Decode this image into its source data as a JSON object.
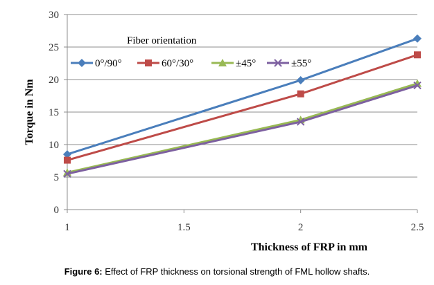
{
  "chart_data": {
    "type": "line",
    "title": "",
    "xlabel": "Thickness of FRP in mm",
    "ylabel": "Torque in Nm",
    "xlim": [
      1,
      2.5
    ],
    "ylim": [
      0,
      30
    ],
    "x_ticks": [
      "1",
      "1.5",
      "2",
      "2.5"
    ],
    "y_ticks": [
      "0",
      "5",
      "10",
      "15",
      "20",
      "25",
      "30"
    ],
    "x": [
      1,
      2,
      2.5
    ],
    "grid": "horizontal",
    "legend_title": "Fiber orientation",
    "legend_position": "top-left",
    "series": [
      {
        "name": "0°/90°",
        "values": [
          8.5,
          19.9,
          26.3
        ],
        "color": "#4a7ebb",
        "marker": "diamond"
      },
      {
        "name": "60°/30°",
        "values": [
          7.6,
          17.8,
          23.8
        ],
        "color": "#be4b48",
        "marker": "square"
      },
      {
        "name": "±45°",
        "values": [
          5.7,
          13.8,
          19.4
        ],
        "color": "#98b954",
        "marker": "triangle"
      },
      {
        "name": "±55°",
        "values": [
          5.5,
          13.5,
          19.1
        ],
        "color": "#7d60a0",
        "marker": "x"
      }
    ]
  },
  "caption": {
    "label": "Figure 6:",
    "text": "Effect of FRP thickness on torsional strength of FML hollow shafts."
  }
}
